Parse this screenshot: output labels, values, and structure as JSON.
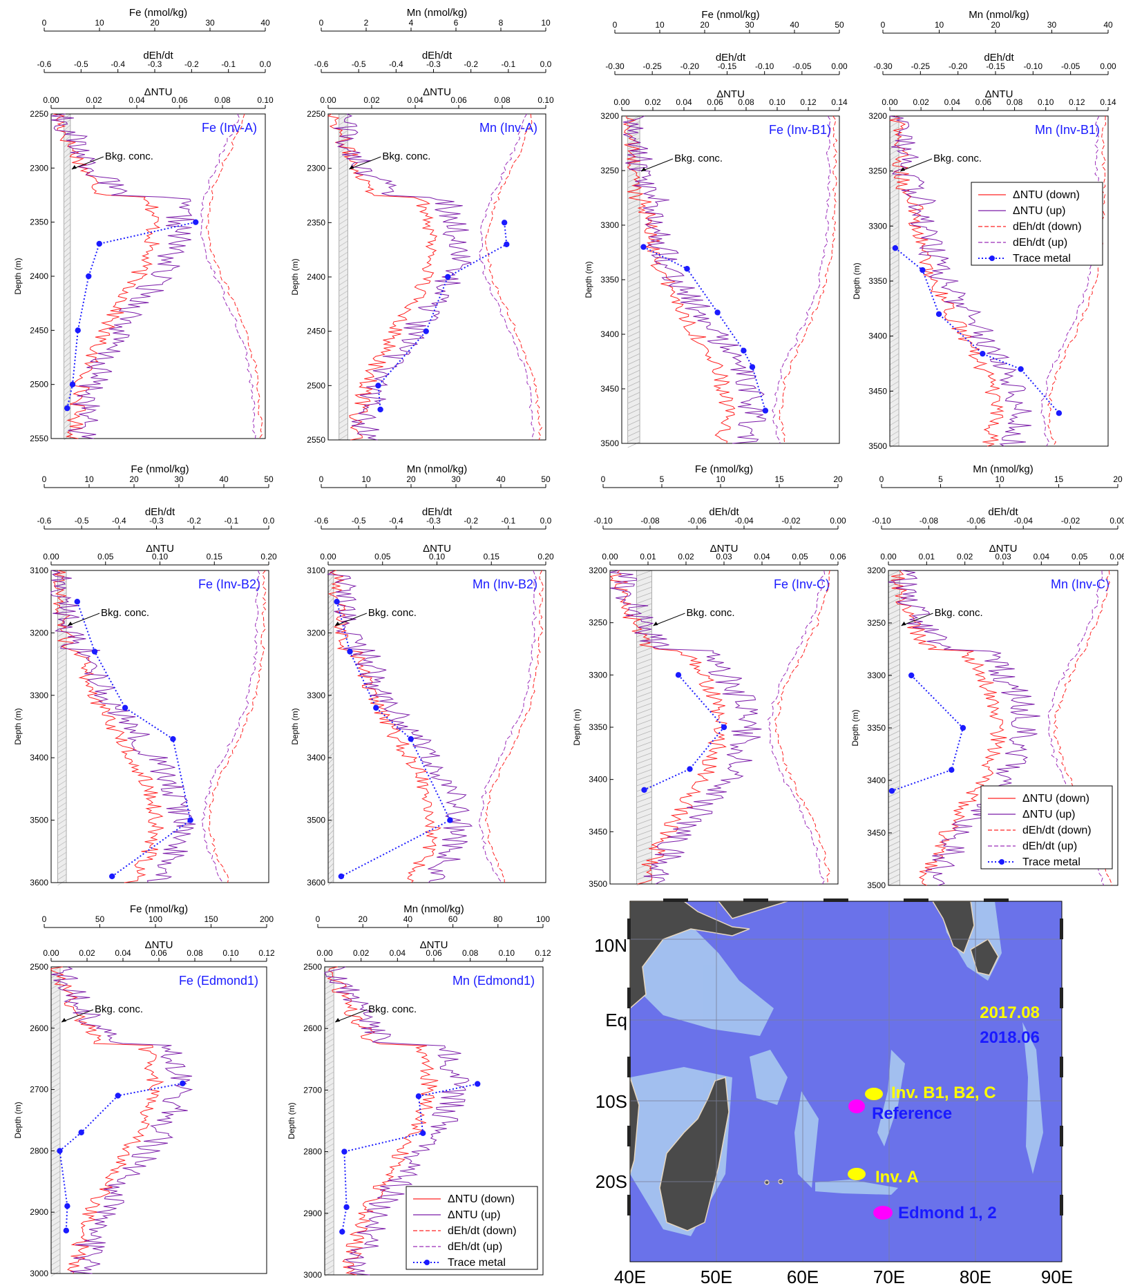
{
  "colors": {
    "ntu_down": "#ff2020",
    "ntu_up": "#7a1aa8",
    "deh_down": "#ff2020",
    "deh_up": "#9a2ab8",
    "trace": "#1a1aff",
    "title": "#1a1aff",
    "sea": "#6a72ea",
    "land": "#4a4a4a",
    "shelf": "#a8c8f0",
    "y2017": "#ffff00",
    "y2018": "#ff00ff",
    "ref": "#ff00ff"
  },
  "legend": {
    "ntu_down": "ΔNTU (down)",
    "ntu_up": "ΔNTU (up)",
    "deh_down": "dEh/dt (down)",
    "deh_up": "dEh/dt  (up)",
    "trace": "Trace metal"
  },
  "bkg_label": "Bkg. conc.",
  "ylabel": "Depth (m)",
  "map": {
    "lat_labels": [
      "10N",
      "Eq",
      "10S",
      "20S"
    ],
    "lon_labels": [
      "40E",
      "50E",
      "60E",
      "70E",
      "80E",
      "90E"
    ],
    "year1": "2017.08",
    "year2": "2018.06",
    "sites": [
      "Inv. B1, B2, C",
      "Reference",
      "Inv. A",
      "Edmond 1, 2"
    ]
  },
  "chart_data": [
    {
      "type": "line",
      "title": "Fe (Inv-A)",
      "metal_label": "Fe (nmol/kg)",
      "metal_ticks": [
        "0",
        "10",
        "20",
        "30",
        "40"
      ],
      "metal_range": [
        0,
        40
      ],
      "deh_label": "dEh/dt",
      "deh_ticks": [
        "-0.6",
        "-0.5",
        "-0.4",
        "-0.3",
        "-0.2",
        "-0.1",
        "0.0"
      ],
      "ntu_label": "ΔNTU",
      "ntu_ticks": [
        "0.00",
        "0.02",
        "0.04",
        "0.06",
        "0.08",
        "0.10"
      ],
      "ntu_range": [
        0,
        0.1
      ],
      "depth_ticks": [
        "2250",
        "2300",
        "2350",
        "2400",
        "2450",
        "2500",
        "2550"
      ],
      "depth_range": [
        2250,
        2550
      ],
      "trace_metal": [
        [
          27,
          2350
        ],
        [
          9,
          2370
        ],
        [
          7,
          2400
        ],
        [
          5,
          2450
        ],
        [
          4,
          2500
        ],
        [
          3,
          2522
        ]
      ],
      "bkg": [
        0.006,
        0.009
      ],
      "legend": false
    },
    {
      "type": "line",
      "title": "Mn (Inv-A)",
      "metal_label": "Mn (nmol/kg)",
      "metal_ticks": [
        "0",
        "2",
        "4",
        "6",
        "8",
        "10"
      ],
      "metal_range": [
        0,
        10
      ],
      "deh_label": "dEh/dt",
      "deh_ticks": [
        "-0.6",
        "-0.5",
        "-0.4",
        "-0.3",
        "-0.2",
        "-0.1",
        "0.0"
      ],
      "ntu_label": "ΔNTU",
      "ntu_ticks": [
        "0.00",
        "0.02",
        "0.04",
        "0.06",
        "0.08",
        "0.10"
      ],
      "ntu_range": [
        0,
        0.1
      ],
      "depth_ticks": [
        "2250",
        "2300",
        "2350",
        "2400",
        "2450",
        "2500",
        "2550"
      ],
      "depth_range": [
        2250,
        2550
      ],
      "trace_metal": [
        [
          8.1,
          2350
        ],
        [
          8.2,
          2370
        ],
        [
          5.5,
          2400
        ],
        [
          4.5,
          2450
        ],
        [
          2.3,
          2500
        ],
        [
          2.4,
          2522
        ]
      ],
      "bkg": [
        0.005,
        0.009
      ],
      "legend": false
    },
    {
      "type": "line",
      "title": "Fe (Inv-B1)",
      "metal_label": "Fe (nmol/kg)",
      "metal_ticks": [
        "0",
        "10",
        "20",
        "30",
        "40",
        "50"
      ],
      "metal_range": [
        0,
        50
      ],
      "deh_label": "dEh/dt",
      "deh_ticks": [
        "-0.30",
        "-0.25",
        "-0.20",
        "-0.15",
        "-0.10",
        "-0.05",
        "0.00"
      ],
      "ntu_label": "ΔNTU",
      "ntu_ticks": [
        "0.00",
        "0.02",
        "0.04",
        "0.06",
        "0.08",
        "0.10",
        "0.12",
        "0.14"
      ],
      "ntu_range": [
        0,
        0.145
      ],
      "depth_ticks": [
        "3200",
        "3250",
        "3300",
        "3350",
        "3400",
        "3450",
        "3500"
      ],
      "depth_range": [
        3200,
        3500
      ],
      "trace_metal": [
        [
          5,
          3320
        ],
        [
          15,
          3340
        ],
        [
          22,
          3380
        ],
        [
          28,
          3415
        ],
        [
          30,
          3430
        ],
        [
          33,
          3470
        ]
      ],
      "bkg": [
        0.004,
        0.012
      ],
      "legend": false
    },
    {
      "type": "line",
      "title": "Mn (Inv-B1)",
      "metal_label": "Mn (nmol/kg)",
      "metal_ticks": [
        "0",
        "10",
        "20",
        "30",
        "40"
      ],
      "metal_range": [
        0,
        40
      ],
      "deh_label": "dEh/dt",
      "deh_ticks": [
        "-0.30",
        "-0.25",
        "-0.20",
        "-0.15",
        "-0.10",
        "-0.05",
        "0.00"
      ],
      "ntu_label": "ΔNTU",
      "ntu_ticks": [
        "0.00",
        "0.02",
        "0.04",
        "0.06",
        "0.08",
        "0.10",
        "0.12",
        "0.14"
      ],
      "ntu_range": [
        0,
        0.145
      ],
      "depth_ticks": [
        "3200",
        "3250",
        "3300",
        "3350",
        "3400",
        "3450",
        "3500"
      ],
      "depth_range": [
        3200,
        3500
      ],
      "trace_metal": [
        [
          1,
          3320
        ],
        [
          6,
          3340
        ],
        [
          9,
          3380
        ],
        [
          17,
          3416
        ],
        [
          24,
          3430
        ],
        [
          31,
          3470
        ]
      ],
      "bkg": [
        0.0,
        0.006
      ],
      "legend": true
    },
    {
      "type": "line",
      "title": "Fe (Inv-B2)",
      "metal_label": "Fe (nmol/kg)",
      "metal_ticks": [
        "0",
        "10",
        "20",
        "30",
        "40",
        "50"
      ],
      "metal_range": [
        0,
        50
      ],
      "deh_label": "dEh/dt",
      "deh_ticks": [
        "-0.6",
        "-0.5",
        "-0.4",
        "-0.3",
        "-0.2",
        "-0.1",
        "0.0"
      ],
      "ntu_label": "ΔNTU",
      "ntu_ticks": [
        "0.00",
        "0.05",
        "0.10",
        "0.15",
        "0.20"
      ],
      "ntu_range": [
        0,
        0.2
      ],
      "depth_ticks": [
        "3100",
        "3200",
        "3300",
        "3400",
        "3500",
        "3600"
      ],
      "depth_range": [
        3100,
        3600
      ],
      "trace_metal": [
        [
          6,
          3150
        ],
        [
          10,
          3230
        ],
        [
          17,
          3320
        ],
        [
          28,
          3370
        ],
        [
          32,
          3500
        ],
        [
          14,
          3590
        ]
      ],
      "bkg": [
        0.006,
        0.014
      ],
      "legend": false
    },
    {
      "type": "line",
      "title": "Mn (Inv-B2)",
      "metal_label": "Mn (nmol/kg)",
      "metal_ticks": [
        "0",
        "10",
        "20",
        "30",
        "40",
        "50"
      ],
      "metal_range": [
        0,
        50
      ],
      "deh_label": "dEh/dt",
      "deh_ticks": [
        "-0.6",
        "-0.5",
        "-0.4",
        "-0.3",
        "-0.2",
        "-0.1",
        "0.0"
      ],
      "ntu_label": "ΔNTU",
      "ntu_ticks": [
        "0.00",
        "0.05",
        "0.10",
        "0.15",
        "0.20"
      ],
      "ntu_range": [
        0,
        0.2
      ],
      "depth_ticks": [
        "3100",
        "3200",
        "3300",
        "3400",
        "3500",
        "3600"
      ],
      "depth_range": [
        3100,
        3600
      ],
      "trace_metal": [
        [
          2,
          3150
        ],
        [
          5,
          3230
        ],
        [
          11,
          3320
        ],
        [
          19,
          3370
        ],
        [
          28,
          3500
        ],
        [
          3,
          3590
        ]
      ],
      "bkg": [
        0.0,
        0.005
      ],
      "legend": false
    },
    {
      "type": "line",
      "title": "Fe (Inv-C)",
      "metal_label": "Fe (nmol/kg)",
      "metal_ticks": [
        "0",
        "5",
        "10",
        "15",
        "20"
      ],
      "metal_range": [
        0,
        20
      ],
      "deh_label": "dEh/dt",
      "deh_ticks": [
        "-0.10",
        "-0.08",
        "-0.06",
        "-0.04",
        "-0.02",
        "0.00"
      ],
      "ntu_label": "ΔNTU",
      "ntu_ticks": [
        "0.00",
        "0.01",
        "0.02",
        "0.03",
        "0.04",
        "0.05",
        "0.06"
      ],
      "ntu_range": [
        0,
        0.06
      ],
      "depth_ticks": [
        "3200",
        "3250",
        "3300",
        "3350",
        "3400",
        "3450",
        "3500"
      ],
      "depth_range": [
        3200,
        3500
      ],
      "trace_metal": [
        [
          6,
          3300
        ],
        [
          10,
          3350
        ],
        [
          7,
          3390
        ],
        [
          3,
          3410
        ]
      ],
      "bkg": [
        0.007,
        0.011
      ],
      "legend": false
    },
    {
      "type": "line",
      "title": "Mn (Inv-C)",
      "metal_label": "Mn (nmol/kg)",
      "metal_ticks": [
        "0",
        "5",
        "10",
        "15",
        "20"
      ],
      "metal_range": [
        0,
        20
      ],
      "deh_label": "dEh/dt",
      "deh_ticks": [
        "-0.10",
        "-0.08",
        "-0.06",
        "-0.04",
        "-0.02",
        "0.00"
      ],
      "ntu_label": "ΔNTU",
      "ntu_ticks": [
        "0.00",
        "0.01",
        "0.02",
        "0.03",
        "0.04",
        "0.05",
        "0.06"
      ],
      "ntu_range": [
        0,
        0.06
      ],
      "depth_ticks": [
        "3200",
        "3250",
        "3300",
        "3350",
        "3400",
        "3450",
        "3500"
      ],
      "depth_range": [
        3200,
        3500
      ],
      "trace_metal": [
        [
          2,
          3300
        ],
        [
          6.5,
          3350
        ],
        [
          5.5,
          3390
        ],
        [
          0.3,
          3410
        ]
      ],
      "bkg": [
        0.0,
        0.003
      ],
      "legend": true
    },
    {
      "type": "line",
      "title": "Fe (Edmond1)",
      "metal_label": "Fe (nmol/kg)",
      "metal_ticks": [
        "0",
        "50",
        "100",
        "150",
        "200"
      ],
      "metal_range": [
        0,
        200
      ],
      "deh_label": "",
      "deh_ticks": [],
      "ntu_label": "ΔNTU",
      "ntu_ticks": [
        "0.00",
        "0.02",
        "0.04",
        "0.06",
        "0.08",
        "0.10",
        "0.12"
      ],
      "ntu_range": [
        0,
        0.12
      ],
      "depth_ticks": [
        "2500",
        "2600",
        "2700",
        "2800",
        "2900",
        "3000"
      ],
      "depth_range": [
        2500,
        3000
      ],
      "trace_metal": [
        [
          122,
          2690
        ],
        [
          62,
          2710
        ],
        [
          28,
          2770
        ],
        [
          8,
          2800
        ],
        [
          15,
          2890
        ],
        [
          14,
          2930
        ]
      ],
      "bkg": [
        0.0,
        0.005
      ],
      "legend": false
    },
    {
      "type": "line",
      "title": "Mn (Edmond1)",
      "metal_label": "Mn (nmol/kg)",
      "metal_ticks": [
        "0",
        "20",
        "40",
        "60",
        "80",
        "100"
      ],
      "metal_range": [
        0,
        100
      ],
      "deh_label": "",
      "deh_ticks": [],
      "ntu_label": "ΔNTU",
      "ntu_ticks": [
        "0.00",
        "0.02",
        "0.04",
        "0.06",
        "0.08",
        "0.10",
        "0.12"
      ],
      "ntu_range": [
        0,
        0.12
      ],
      "depth_ticks": [
        "2500",
        "2600",
        "2700",
        "2800",
        "2900",
        "3000"
      ],
      "depth_range": [
        2500,
        3000
      ],
      "trace_metal": [
        [
          70,
          2690
        ],
        [
          43,
          2710
        ],
        [
          45,
          2770
        ],
        [
          9,
          2800
        ],
        [
          10,
          2890
        ],
        [
          8,
          2930
        ]
      ],
      "bkg": [
        0.0,
        0.005
      ],
      "legend": true
    }
  ]
}
